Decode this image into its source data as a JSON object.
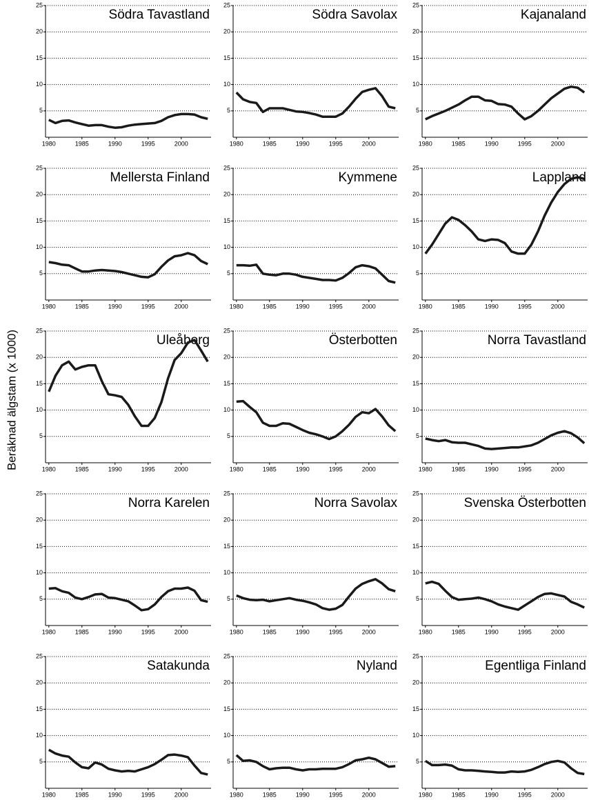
{
  "ylabel": "Beräknad älgstam (x 1000)",
  "chart_data": [
    {
      "type": "line",
      "title": "Södra Tavastland",
      "x": [
        1980,
        1981,
        1982,
        1983,
        1984,
        1985,
        1986,
        1987,
        1988,
        1989,
        1990,
        1991,
        1992,
        1993,
        1994,
        1995,
        1996,
        1997,
        1998,
        1999,
        2000,
        2001,
        2002,
        2003,
        2004
      ],
      "values": [
        3.3,
        2.7,
        3.1,
        3.2,
        2.8,
        2.5,
        2.2,
        2.3,
        2.3,
        2.0,
        1.8,
        1.9,
        2.2,
        2.4,
        2.5,
        2.6,
        2.7,
        3.1,
        3.8,
        4.2,
        4.4,
        4.4,
        4.3,
        3.8,
        3.5
      ],
      "color": "#1a1a1a",
      "xlim": [
        1979.5,
        2004.5
      ],
      "ylim": [
        0,
        25
      ],
      "xticks": [
        1980,
        1985,
        1990,
        1995,
        2000
      ],
      "yticks": [
        5,
        10,
        15,
        20,
        25
      ],
      "grid": true
    },
    {
      "type": "line",
      "title": "Södra Savolax",
      "x": [
        1980,
        1981,
        1982,
        1983,
        1984,
        1985,
        1986,
        1987,
        1988,
        1989,
        1990,
        1991,
        1992,
        1993,
        1994,
        1995,
        1996,
        1997,
        1998,
        1999,
        2000,
        2001,
        2002,
        2003,
        2004
      ],
      "values": [
        8.5,
        7.2,
        6.7,
        6.5,
        4.8,
        5.5,
        5.5,
        5.5,
        5.2,
        4.9,
        4.8,
        4.6,
        4.3,
        3.9,
        3.9,
        3.9,
        4.5,
        5.8,
        7.3,
        8.6,
        9.0,
        9.3,
        7.8,
        5.8,
        5.5
      ],
      "color": "#1a1a1a",
      "xlim": [
        1979.5,
        2004.5
      ],
      "ylim": [
        0,
        25
      ],
      "xticks": [
        1980,
        1985,
        1990,
        1995,
        2000
      ],
      "yticks": [
        5,
        10,
        15,
        20,
        25
      ],
      "grid": true
    },
    {
      "type": "line",
      "title": "Kajanaland",
      "x": [
        1980,
        1981,
        1982,
        1983,
        1984,
        1985,
        1986,
        1987,
        1988,
        1989,
        1990,
        1991,
        1992,
        1993,
        1994,
        1995,
        1996,
        1997,
        1998,
        1999,
        2000,
        2001,
        2002,
        2003,
        2004
      ],
      "values": [
        3.4,
        4.0,
        4.5,
        5.0,
        5.6,
        6.2,
        7.0,
        7.7,
        7.7,
        7.0,
        6.9,
        6.3,
        6.2,
        5.8,
        4.5,
        3.4,
        4.0,
        5.0,
        6.2,
        7.4,
        8.3,
        9.2,
        9.6,
        9.4,
        8.5
      ],
      "color": "#1a1a1a",
      "xlim": [
        1979.5,
        2004.5
      ],
      "ylim": [
        0,
        25
      ],
      "xticks": [
        1980,
        1985,
        1990,
        1995,
        2000
      ],
      "yticks": [
        5,
        10,
        15,
        20,
        25
      ],
      "grid": true
    },
    {
      "type": "line",
      "title": "Mellersta Finland",
      "x": [
        1980,
        1981,
        1982,
        1983,
        1984,
        1985,
        1986,
        1987,
        1988,
        1989,
        1990,
        1991,
        1992,
        1993,
        1994,
        1995,
        1996,
        1997,
        1998,
        1999,
        2000,
        2001,
        2002,
        2003,
        2004
      ],
      "values": [
        7.2,
        7.0,
        6.7,
        6.6,
        6.0,
        5.4,
        5.4,
        5.6,
        5.7,
        5.6,
        5.5,
        5.3,
        5.0,
        4.7,
        4.4,
        4.3,
        4.9,
        6.3,
        7.5,
        8.3,
        8.5,
        8.9,
        8.5,
        7.4,
        6.8
      ],
      "color": "#1a1a1a",
      "xlim": [
        1979.5,
        2004.5
      ],
      "ylim": [
        0,
        25
      ],
      "xticks": [
        1980,
        1985,
        1990,
        1995,
        2000
      ],
      "yticks": [
        5,
        10,
        15,
        20,
        25
      ],
      "grid": true
    },
    {
      "type": "line",
      "title": "Kymmene",
      "x": [
        1980,
        1981,
        1982,
        1983,
        1984,
        1985,
        1986,
        1987,
        1988,
        1989,
        1990,
        1991,
        1992,
        1993,
        1994,
        1995,
        1996,
        1997,
        1998,
        1999,
        2000,
        2001,
        2002,
        2003,
        2004
      ],
      "values": [
        6.6,
        6.6,
        6.5,
        6.7,
        5.0,
        4.8,
        4.7,
        5.0,
        5.0,
        4.8,
        4.4,
        4.2,
        4.0,
        3.8,
        3.8,
        3.7,
        4.2,
        5.1,
        6.2,
        6.6,
        6.4,
        6.0,
        4.8,
        3.6,
        3.3
      ],
      "color": "#1a1a1a",
      "xlim": [
        1979.5,
        2004.5
      ],
      "ylim": [
        0,
        25
      ],
      "xticks": [
        1980,
        1985,
        1990,
        1995,
        2000
      ],
      "yticks": [
        5,
        10,
        15,
        20,
        25
      ],
      "grid": true
    },
    {
      "type": "line",
      "title": "Lappland",
      "x": [
        1980,
        1981,
        1982,
        1983,
        1984,
        1985,
        1986,
        1987,
        1988,
        1989,
        1990,
        1991,
        1992,
        1993,
        1994,
        1995,
        1996,
        1997,
        1998,
        1999,
        2000,
        2001,
        2002,
        2003,
        2004
      ],
      "values": [
        8.8,
        10.5,
        12.5,
        14.5,
        15.7,
        15.2,
        14.2,
        13.0,
        11.5,
        11.2,
        11.5,
        11.4,
        10.8,
        9.2,
        8.8,
        8.8,
        10.5,
        13.0,
        16.0,
        18.5,
        20.5,
        22.0,
        23.0,
        23.3,
        23.0
      ],
      "color": "#1a1a1a",
      "xlim": [
        1979.5,
        2004.5
      ],
      "ylim": [
        0,
        25
      ],
      "xticks": [
        1980,
        1985,
        1990,
        1995,
        2000
      ],
      "yticks": [
        5,
        10,
        15,
        20,
        25
      ],
      "grid": true
    },
    {
      "type": "line",
      "title": "Uleåborg",
      "x": [
        1980,
        1981,
        1982,
        1983,
        1984,
        1985,
        1986,
        1987,
        1988,
        1989,
        1990,
        1991,
        1992,
        1993,
        1994,
        1995,
        1996,
        1997,
        1998,
        1999,
        2000,
        2001,
        2002,
        2003,
        2004
      ],
      "values": [
        13.5,
        16.5,
        18.5,
        19.2,
        17.7,
        18.2,
        18.5,
        18.5,
        15.5,
        13.0,
        12.8,
        12.5,
        11.0,
        8.8,
        7.0,
        7.0,
        8.5,
        11.5,
        16.0,
        19.5,
        20.8,
        22.8,
        23.3,
        21.3,
        19.2
      ],
      "color": "#1a1a1a",
      "xlim": [
        1979.5,
        2004.5
      ],
      "ylim": [
        0,
        25
      ],
      "xticks": [
        1980,
        1985,
        1990,
        1995,
        2000
      ],
      "yticks": [
        5,
        10,
        15,
        20,
        25
      ],
      "grid": true
    },
    {
      "type": "line",
      "title": "Österbotten",
      "x": [
        1980,
        1981,
        1982,
        1983,
        1984,
        1985,
        1986,
        1987,
        1988,
        1989,
        1990,
        1991,
        1992,
        1993,
        1994,
        1995,
        1996,
        1997,
        1998,
        1999,
        2000,
        2001,
        2002,
        2003,
        2004
      ],
      "values": [
        11.6,
        11.7,
        10.6,
        9.6,
        7.6,
        7.0,
        7.0,
        7.5,
        7.4,
        6.8,
        6.2,
        5.7,
        5.4,
        5.0,
        4.5,
        5.0,
        6.0,
        7.2,
        8.7,
        9.6,
        9.4,
        10.2,
        8.8,
        7.1,
        6.0
      ],
      "color": "#1a1a1a",
      "xlim": [
        1979.5,
        2004.5
      ],
      "ylim": [
        0,
        25
      ],
      "xticks": [
        1980,
        1985,
        1990,
        1995,
        2000
      ],
      "yticks": [
        5,
        10,
        15,
        20,
        25
      ],
      "grid": true
    },
    {
      "type": "line",
      "title": "Norra Tavastland",
      "x": [
        1980,
        1981,
        1982,
        1983,
        1984,
        1985,
        1986,
        1987,
        1988,
        1989,
        1990,
        1991,
        1992,
        1993,
        1994,
        1995,
        1996,
        1997,
        1998,
        1999,
        2000,
        2001,
        2002,
        2003,
        2004
      ],
      "values": [
        4.6,
        4.3,
        4.1,
        4.3,
        3.9,
        3.8,
        3.8,
        3.5,
        3.2,
        2.7,
        2.6,
        2.7,
        2.8,
        2.9,
        2.9,
        3.1,
        3.3,
        3.8,
        4.5,
        5.2,
        5.7,
        6.0,
        5.6,
        4.8,
        3.7
      ],
      "color": "#1a1a1a",
      "xlim": [
        1979.5,
        2004.5
      ],
      "ylim": [
        0,
        25
      ],
      "xticks": [
        1980,
        1985,
        1990,
        1995,
        2000
      ],
      "yticks": [
        5,
        10,
        15,
        20,
        25
      ],
      "grid": true
    },
    {
      "type": "line",
      "title": "Norra Karelen",
      "x": [
        1980,
        1981,
        1982,
        1983,
        1984,
        1985,
        1986,
        1987,
        1988,
        1989,
        1990,
        1991,
        1992,
        1993,
        1994,
        1995,
        1996,
        1997,
        1998,
        1999,
        2000,
        2001,
        2002,
        2003,
        2004
      ],
      "values": [
        7.0,
        7.1,
        6.5,
        6.2,
        5.3,
        5.0,
        5.4,
        5.9,
        6.0,
        5.3,
        5.2,
        4.9,
        4.6,
        3.8,
        2.9,
        3.1,
        4.0,
        5.4,
        6.5,
        7.0,
        7.0,
        7.2,
        6.6,
        4.8,
        4.5
      ],
      "color": "#1a1a1a",
      "xlim": [
        1979.5,
        2004.5
      ],
      "ylim": [
        0,
        25
      ],
      "xticks": [
        1980,
        1985,
        1990,
        1995,
        2000
      ],
      "yticks": [
        5,
        10,
        15,
        20,
        25
      ],
      "grid": true
    },
    {
      "type": "line",
      "title": "Norra Savolax",
      "x": [
        1980,
        1981,
        1982,
        1983,
        1984,
        1985,
        1986,
        1987,
        1988,
        1989,
        1990,
        1991,
        1992,
        1993,
        1994,
        1995,
        1996,
        1997,
        1998,
        1999,
        2000,
        2001,
        2002,
        2003,
        2004
      ],
      "values": [
        5.7,
        5.2,
        4.9,
        4.8,
        4.9,
        4.6,
        4.8,
        5.0,
        5.2,
        4.9,
        4.7,
        4.4,
        4.0,
        3.3,
        3.0,
        3.2,
        3.9,
        5.5,
        7.0,
        7.9,
        8.4,
        8.8,
        8.0,
        6.9,
        6.5
      ],
      "color": "#1a1a1a",
      "xlim": [
        1979.5,
        2004.5
      ],
      "ylim": [
        0,
        25
      ],
      "xticks": [
        1980,
        1985,
        1990,
        1995,
        2000
      ],
      "yticks": [
        5,
        10,
        15,
        20,
        25
      ],
      "grid": true
    },
    {
      "type": "line",
      "title": "Svenska Österbotten",
      "x": [
        1980,
        1981,
        1982,
        1983,
        1984,
        1985,
        1986,
        1987,
        1988,
        1989,
        1990,
        1991,
        1992,
        1993,
        1994,
        1995,
        1996,
        1997,
        1998,
        1999,
        2000,
        2001,
        2002,
        2003,
        2004
      ],
      "values": [
        8.0,
        8.3,
        7.9,
        6.6,
        5.4,
        4.9,
        5.0,
        5.1,
        5.3,
        5.0,
        4.6,
        4.0,
        3.6,
        3.3,
        3.0,
        3.8,
        4.6,
        5.4,
        6.0,
        6.1,
        5.8,
        5.5,
        4.5,
        4.0,
        3.4
      ],
      "color": "#1a1a1a",
      "xlim": [
        1979.5,
        2004.5
      ],
      "ylim": [
        0,
        25
      ],
      "xticks": [
        1980,
        1985,
        1990,
        1995,
        2000
      ],
      "yticks": [
        5,
        10,
        15,
        20,
        25
      ],
      "grid": true
    },
    {
      "type": "line",
      "title": "Satakunda",
      "x": [
        1980,
        1981,
        1982,
        1983,
        1984,
        1985,
        1986,
        1987,
        1988,
        1989,
        1990,
        1991,
        1992,
        1993,
        1994,
        1995,
        1996,
        1997,
        1998,
        1999,
        2000,
        2001,
        2002,
        2003,
        2004
      ],
      "values": [
        7.3,
        6.6,
        6.2,
        6.0,
        4.9,
        4.0,
        3.8,
        4.9,
        4.5,
        3.7,
        3.4,
        3.2,
        3.3,
        3.2,
        3.6,
        4.0,
        4.6,
        5.4,
        6.3,
        6.4,
        6.2,
        5.9,
        4.3,
        2.9,
        2.6
      ],
      "color": "#1a1a1a",
      "xlim": [
        1979.5,
        2004.5
      ],
      "ylim": [
        0,
        25
      ],
      "xticks": [
        1980,
        1985,
        1990,
        1995,
        2000
      ],
      "yticks": [
        5,
        10,
        15,
        20,
        25
      ],
      "grid": true
    },
    {
      "type": "line",
      "title": "Nyland",
      "x": [
        1980,
        1981,
        1982,
        1983,
        1984,
        1985,
        1986,
        1987,
        1988,
        1989,
        1990,
        1991,
        1992,
        1993,
        1994,
        1995,
        1996,
        1997,
        1998,
        1999,
        2000,
        2001,
        2002,
        2003,
        2004
      ],
      "values": [
        6.3,
        5.2,
        5.3,
        5.0,
        4.2,
        3.6,
        3.8,
        3.9,
        3.9,
        3.6,
        3.4,
        3.6,
        3.6,
        3.7,
        3.7,
        3.7,
        4.0,
        4.6,
        5.3,
        5.5,
        5.8,
        5.5,
        4.8,
        4.1,
        4.2
      ],
      "color": "#1a1a1a",
      "xlim": [
        1979.5,
        2004.5
      ],
      "ylim": [
        0,
        25
      ],
      "xticks": [
        1980,
        1985,
        1990,
        1995,
        2000
      ],
      "yticks": [
        5,
        10,
        15,
        20,
        25
      ],
      "grid": true
    },
    {
      "type": "line",
      "title": "Egentliga Finland",
      "x": [
        1980,
        1981,
        1982,
        1983,
        1984,
        1985,
        1986,
        1987,
        1988,
        1989,
        1990,
        1991,
        1992,
        1993,
        1994,
        1995,
        1996,
        1997,
        1998,
        1999,
        2000,
        2001,
        2002,
        2003,
        2004
      ],
      "values": [
        5.2,
        4.4,
        4.4,
        4.5,
        4.3,
        3.6,
        3.4,
        3.4,
        3.3,
        3.2,
        3.1,
        3.0,
        3.0,
        3.2,
        3.1,
        3.2,
        3.5,
        4.0,
        4.6,
        5.0,
        5.2,
        4.9,
        3.8,
        2.9,
        2.7
      ],
      "color": "#1a1a1a",
      "xlim": [
        1979.5,
        2004.5
      ],
      "ylim": [
        0,
        25
      ],
      "xticks": [
        1980,
        1985,
        1990,
        1995,
        2000
      ],
      "yticks": [
        5,
        10,
        15,
        20,
        25
      ],
      "grid": true
    }
  ]
}
